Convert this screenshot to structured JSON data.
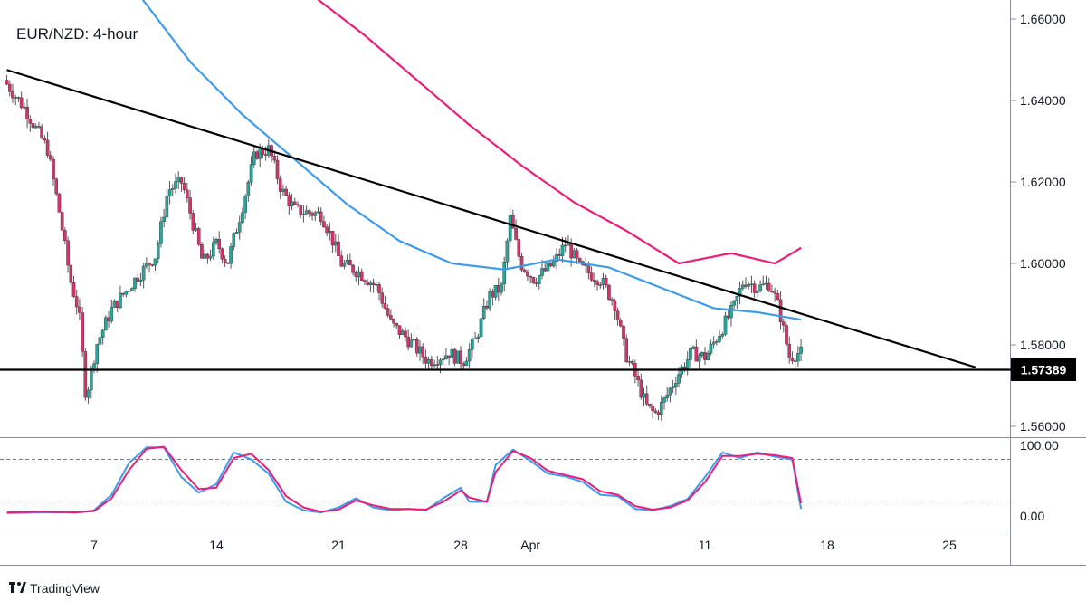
{
  "brand": {
    "name": "TradingView",
    "logo_icon": "tradingview-logo-icon"
  },
  "chart_data": {
    "type": "candlestick",
    "title": "EUR/NZD: 4-hour",
    "price_axis": {
      "ticks": [
        "1.66000",
        "1.64000",
        "1.62000",
        "1.60000",
        "1.58000",
        "1.56000"
      ],
      "tick_values": [
        1.66,
        1.64,
        1.62,
        1.6,
        1.58,
        1.56
      ],
      "range": [
        1.5535,
        1.6635
      ]
    },
    "time_axis": {
      "ticks": [
        "7",
        "14",
        "21",
        "28",
        "Apr",
        "11",
        "18",
        "25"
      ],
      "tick_positions_days": [
        7,
        14,
        21,
        28,
        32,
        42,
        49,
        56
      ],
      "range_days": [
        2,
        58
      ]
    },
    "support_level": {
      "value": 1.57389,
      "label": "1.57389",
      "color": "#000000"
    },
    "trendline": {
      "from": {
        "day": 2.0,
        "price": 1.6475
      },
      "to": {
        "day": 57.5,
        "price": 1.5745
      },
      "color": "#000000"
    },
    "colors": {
      "up": "#26a69a",
      "down": "#d6336c",
      "ma_fast": "#3d9be9",
      "ma_slow": "#e91e7a",
      "stoch_k": "#3d9be9",
      "stoch_d": "#e91e7a",
      "tag_bg": "#000000"
    },
    "ohlc_keypoints": [
      [
        2.0,
        1.645
      ],
      [
        3.2,
        1.638
      ],
      [
        4.5,
        1.628
      ],
      [
        5.2,
        1.612
      ],
      [
        5.8,
        1.596
      ],
      [
        6.3,
        1.588
      ],
      [
        6.7,
        1.567
      ],
      [
        7.3,
        1.58
      ],
      [
        8.2,
        1.589
      ],
      [
        9.5,
        1.596
      ],
      [
        10.7,
        1.602
      ],
      [
        11.4,
        1.618
      ],
      [
        12.2,
        1.62
      ],
      [
        12.7,
        1.612
      ],
      [
        13.4,
        1.6
      ],
      [
        14.2,
        1.605
      ],
      [
        14.8,
        1.6
      ],
      [
        15.6,
        1.613
      ],
      [
        16.4,
        1.627
      ],
      [
        17.2,
        1.628
      ],
      [
        17.9,
        1.618
      ],
      [
        18.7,
        1.613
      ],
      [
        20.2,
        1.612
      ],
      [
        20.8,
        1.606
      ],
      [
        21.3,
        1.6
      ],
      [
        22.3,
        1.598
      ],
      [
        23.4,
        1.594
      ],
      [
        24.2,
        1.585
      ],
      [
        25.0,
        1.582
      ],
      [
        26.3,
        1.576
      ],
      [
        27.5,
        1.578
      ],
      [
        28.3,
        1.576
      ],
      [
        29.0,
        1.581
      ],
      [
        29.8,
        1.592
      ],
      [
        30.5,
        1.594
      ],
      [
        31.0,
        1.611
      ],
      [
        31.6,
        1.6
      ],
      [
        32.4,
        1.596
      ],
      [
        33.5,
        1.6
      ],
      [
        34.2,
        1.605
      ],
      [
        35.0,
        1.599
      ],
      [
        36.2,
        1.596
      ],
      [
        37.0,
        1.59
      ],
      [
        37.6,
        1.578
      ],
      [
        38.2,
        1.572
      ],
      [
        38.8,
        1.565
      ],
      [
        39.3,
        1.563
      ],
      [
        39.8,
        1.566
      ],
      [
        40.5,
        1.572
      ],
      [
        41.4,
        1.578
      ],
      [
        42.2,
        1.577
      ],
      [
        43.0,
        1.583
      ],
      [
        43.8,
        1.589
      ],
      [
        44.4,
        1.596
      ],
      [
        45.2,
        1.594
      ],
      [
        45.9,
        1.595
      ],
      [
        46.4,
        1.589
      ],
      [
        47.0,
        1.577
      ],
      [
        47.5,
        1.578
      ]
    ],
    "moving_averages": [
      {
        "name": "",
        "color": "#3d9be9",
        "points": [
          [
            9.6,
            1.6658
          ],
          [
            12.5,
            1.6495
          ],
          [
            15.5,
            1.6365
          ],
          [
            18.5,
            1.6255
          ],
          [
            21.5,
            1.6145
          ],
          [
            24.5,
            1.6055
          ],
          [
            27.5,
            1.6
          ],
          [
            30.5,
            1.5985
          ],
          [
            33.5,
            1.601
          ],
          [
            36.5,
            1.599
          ],
          [
            39.5,
            1.594
          ],
          [
            42.5,
            1.589
          ],
          [
            45.0,
            1.588
          ],
          [
            47.5,
            1.5862
          ]
        ]
      },
      {
        "name": "",
        "color": "#e91e7a",
        "points": [
          [
            19.3,
            1.6665
          ],
          [
            22.5,
            1.656
          ],
          [
            25.5,
            1.645
          ],
          [
            28.5,
            1.634
          ],
          [
            31.5,
            1.624
          ],
          [
            34.5,
            1.615
          ],
          [
            37.5,
            1.608
          ],
          [
            40.5,
            1.6
          ],
          [
            43.5,
            1.6025
          ],
          [
            46.0,
            1.6
          ],
          [
            47.5,
            1.6038
          ]
        ]
      }
    ],
    "stochastic": {
      "ticks": [
        "100.00",
        "0.00"
      ],
      "levels": [
        80,
        20
      ],
      "k_keypoints": [
        [
          2.0,
          4
        ],
        [
          4.0,
          5
        ],
        [
          6.0,
          5
        ],
        [
          7.0,
          8
        ],
        [
          8.0,
          30
        ],
        [
          9.0,
          75
        ],
        [
          10.0,
          97
        ],
        [
          11.0,
          97
        ],
        [
          12.0,
          55
        ],
        [
          13.0,
          33
        ],
        [
          14.0,
          45
        ],
        [
          15.0,
          90
        ],
        [
          16.0,
          80
        ],
        [
          17.0,
          60
        ],
        [
          18.0,
          20
        ],
        [
          19.0,
          8
        ],
        [
          20.0,
          5
        ],
        [
          21.0,
          12
        ],
        [
          22.0,
          25
        ],
        [
          23.0,
          12
        ],
        [
          24.0,
          8
        ],
        [
          25.0,
          10
        ],
        [
          26.0,
          8
        ],
        [
          27.0,
          25
        ],
        [
          28.0,
          40
        ],
        [
          28.5,
          20
        ],
        [
          29.5,
          20
        ],
        [
          30.0,
          72
        ],
        [
          31.0,
          94
        ],
        [
          32.0,
          78
        ],
        [
          33.0,
          60
        ],
        [
          34.0,
          56
        ],
        [
          35.0,
          48
        ],
        [
          36.0,
          30
        ],
        [
          37.0,
          28
        ],
        [
          38.0,
          10
        ],
        [
          39.0,
          8
        ],
        [
          40.0,
          14
        ],
        [
          41.0,
          24
        ],
        [
          42.0,
          55
        ],
        [
          43.0,
          90
        ],
        [
          44.0,
          82
        ],
        [
          45.0,
          90
        ],
        [
          46.0,
          84
        ],
        [
          47.0,
          80
        ],
        [
          47.5,
          10
        ]
      ],
      "d_keypoints": [
        [
          2.0,
          5
        ],
        [
          4.0,
          6
        ],
        [
          6.0,
          5
        ],
        [
          7.0,
          7
        ],
        [
          8.0,
          25
        ],
        [
          9.0,
          65
        ],
        [
          10.0,
          95
        ],
        [
          11.0,
          98
        ],
        [
          12.0,
          65
        ],
        [
          13.0,
          38
        ],
        [
          14.0,
          40
        ],
        [
          15.0,
          82
        ],
        [
          16.0,
          88
        ],
        [
          17.0,
          65
        ],
        [
          18.0,
          28
        ],
        [
          19.0,
          12
        ],
        [
          20.0,
          6
        ],
        [
          21.0,
          9
        ],
        [
          22.0,
          22
        ],
        [
          23.0,
          15
        ],
        [
          24.0,
          10
        ],
        [
          25.0,
          10
        ],
        [
          26.0,
          9
        ],
        [
          27.0,
          20
        ],
        [
          28.0,
          36
        ],
        [
          28.5,
          26
        ],
        [
          29.5,
          20
        ],
        [
          30.0,
          62
        ],
        [
          31.0,
          92
        ],
        [
          32.0,
          82
        ],
        [
          33.0,
          64
        ],
        [
          34.0,
          58
        ],
        [
          35.0,
          52
        ],
        [
          36.0,
          35
        ],
        [
          37.0,
          30
        ],
        [
          38.0,
          14
        ],
        [
          39.0,
          9
        ],
        [
          40.0,
          12
        ],
        [
          41.0,
          22
        ],
        [
          42.0,
          48
        ],
        [
          43.0,
          85
        ],
        [
          44.0,
          85
        ],
        [
          45.0,
          88
        ],
        [
          46.0,
          86
        ],
        [
          47.0,
          82
        ],
        [
          47.5,
          18
        ]
      ]
    }
  }
}
